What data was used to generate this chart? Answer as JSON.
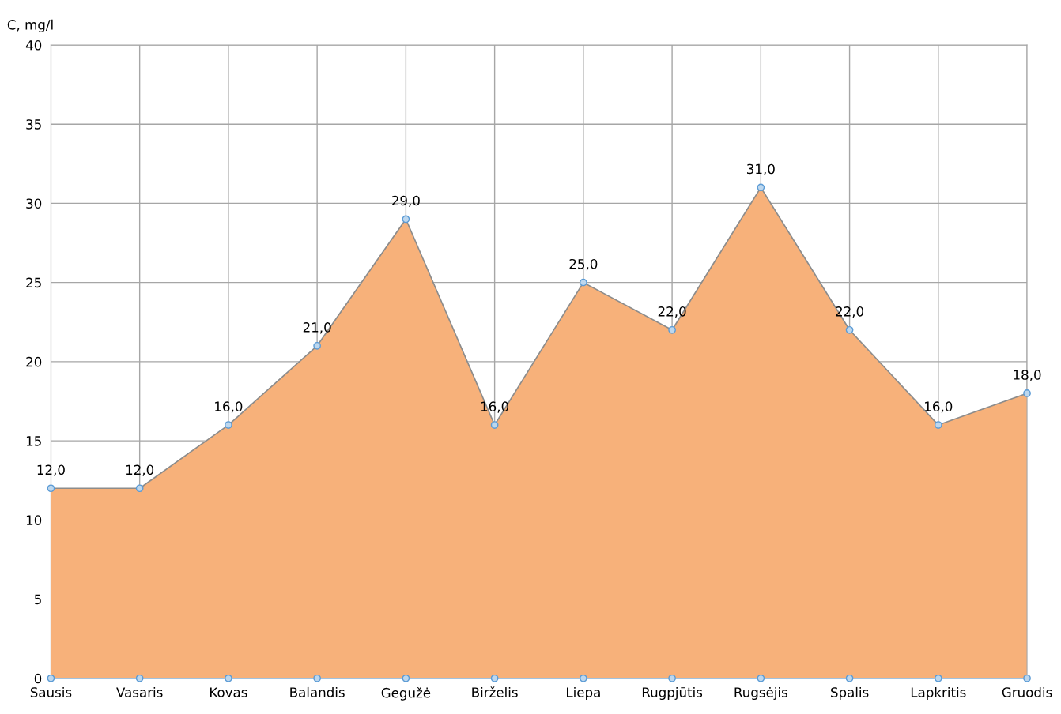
{
  "chart_data": {
    "type": "area",
    "ylabel": "C, mg/l",
    "categories": [
      "Sausis",
      "Vasaris",
      "Kovas",
      "Balandis",
      "Gegužė",
      "Birželis",
      "Liepa",
      "Rugpjūtis",
      "Rugsėjis",
      "Spalis",
      "Lapkritis",
      "Gruodis"
    ],
    "series": [
      {
        "color": "#f7b17a",
        "values": [
          12,
          12,
          16,
          21,
          29,
          16,
          25,
          22,
          31,
          22,
          16,
          18
        ],
        "value_labels": [
          "12,0",
          "12,0",
          "16,0",
          "21,0",
          "29,0",
          "16,0",
          "25,0",
          "22,0",
          "31,0",
          "22,0",
          "16,0",
          "18,0"
        ]
      },
      {
        "type": "line",
        "color": "#5b9bd5",
        "values": [
          0,
          0,
          0,
          0,
          0,
          0,
          0,
          0,
          0,
          0,
          0,
          0
        ]
      }
    ],
    "marker": "circle",
    "ylim": [
      0,
      40
    ],
    "yticks": [
      0,
      5,
      10,
      15,
      20,
      25,
      30,
      35,
      40
    ],
    "grid": true
  }
}
